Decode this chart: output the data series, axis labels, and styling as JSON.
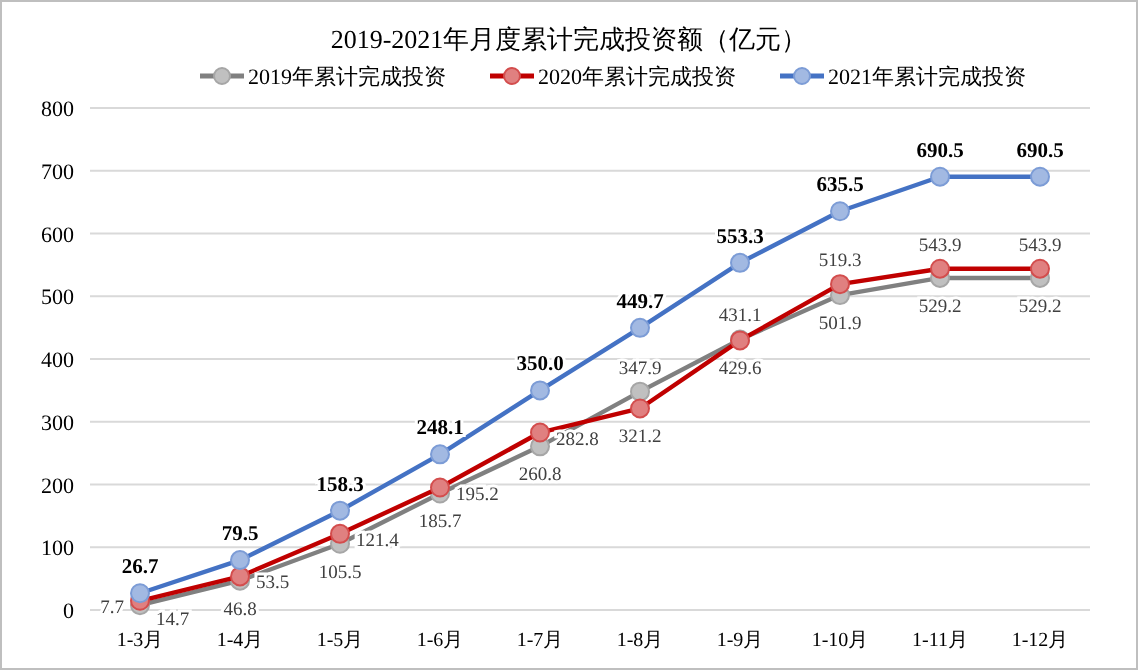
{
  "chart_data": {
    "type": "line",
    "title": "2019-2021年月度累计完成投资额（亿元）",
    "categories": [
      "1-3月",
      "1-4月",
      "1-5月",
      "1-6月",
      "1-7月",
      "1-8月",
      "1-9月",
      "1-10月",
      "1-11月",
      "1-12月"
    ],
    "series": [
      {
        "name": "2019年累计完成投资",
        "color": "#808080",
        "values": [
          7.7,
          46.8,
          105.5,
          185.7,
          260.8,
          347.9,
          431.1,
          501.9,
          529.2,
          529.2
        ],
        "value_labels": [
          "7.7",
          "46.8",
          "105.5",
          "185.7",
          "260.8",
          "347.9",
          "431.1",
          "501.9",
          "529.2",
          "529.2"
        ]
      },
      {
        "name": "2020年累计完成投资",
        "color": "#c00000",
        "values": [
          14.7,
          53.5,
          121.4,
          195.2,
          282.8,
          321.2,
          429.6,
          519.3,
          543.9,
          543.9
        ],
        "value_labels": [
          "14.7",
          "53.5",
          "121.4",
          "195.2",
          "282.8",
          "321.2",
          "429.6",
          "519.3",
          "543.9",
          "543.9"
        ]
      },
      {
        "name": "2021年累计完成投资",
        "color": "#4472c4",
        "values": [
          26.7,
          79.5,
          158.3,
          248.1,
          350.0,
          449.7,
          553.3,
          635.5,
          690.5,
          690.5
        ],
        "value_labels": [
          "26.7",
          "79.5",
          "158.3",
          "248.1",
          "350.0",
          "449.7",
          "553.3",
          "635.5",
          "690.5",
          "690.5"
        ]
      }
    ],
    "ylim": [
      0,
      800
    ],
    "yticks": [
      0,
      100,
      200,
      300,
      400,
      500,
      600,
      700,
      800
    ],
    "grid": "y",
    "legend": "top",
    "marker": "circle",
    "line_style": "solid"
  }
}
